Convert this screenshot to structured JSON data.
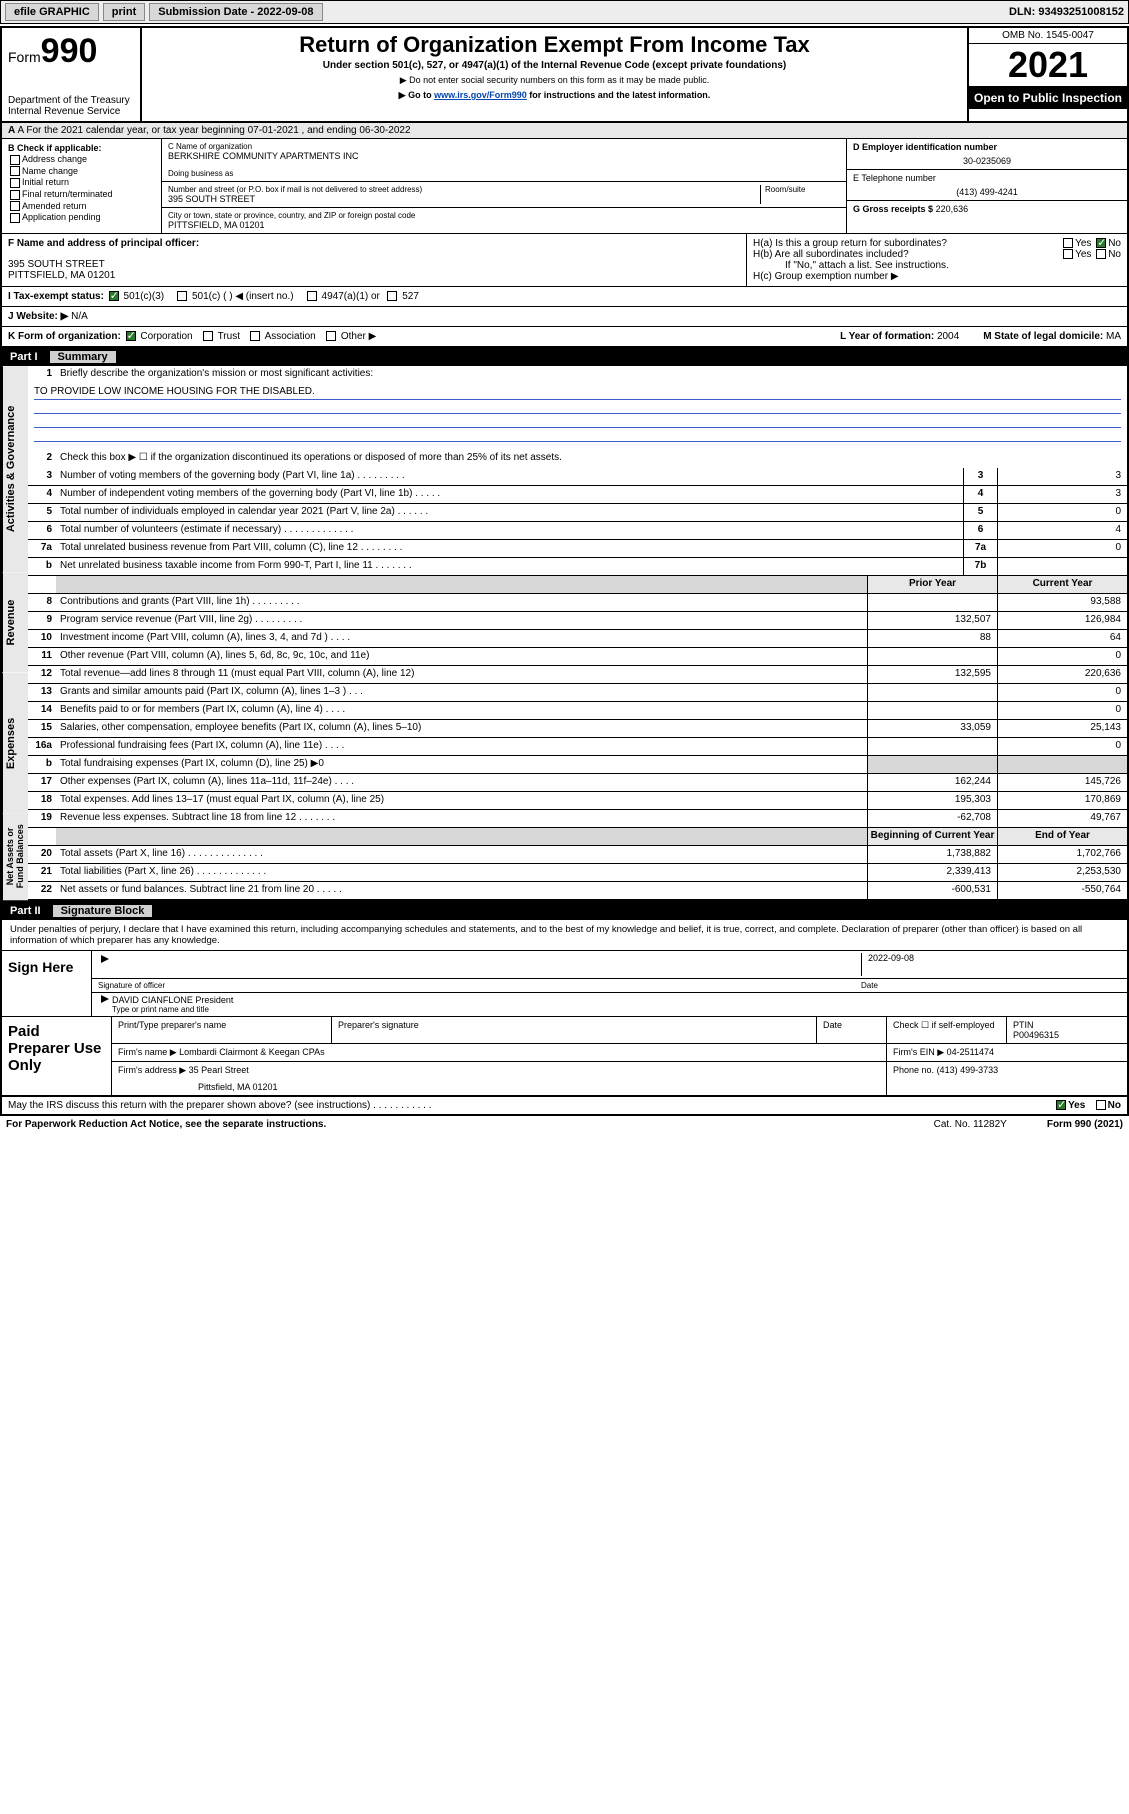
{
  "topbar": {
    "efile": "efile GRAPHIC",
    "print": "print",
    "subdate_label": "Submission Date - 2022-09-08",
    "dln": "DLN: 93493251008152"
  },
  "header": {
    "form_prefix": "Form",
    "form_number": "990",
    "dept": "Department of the Treasury",
    "irs": "Internal Revenue Service",
    "title": "Return of Organization Exempt From Income Tax",
    "sub1": "Under section 501(c), 527, or 4947(a)(1) of the Internal Revenue Code (except private foundations)",
    "sub2": "▶ Do not enter social security numbers on this form as it may be made public.",
    "sub3_pre": "▶ Go to ",
    "sub3_link": "www.irs.gov/Form990",
    "sub3_post": " for instructions and the latest information.",
    "omb": "OMB No. 1545-0047",
    "year": "2021",
    "open": "Open to Public Inspection"
  },
  "row_a": "A For the 2021 calendar year, or tax year beginning 07-01-2021   , and ending 06-30-2022",
  "section_b": {
    "label": "B Check if applicable:",
    "opts": [
      "Address change",
      "Name change",
      "Initial return",
      "Final return/terminated",
      "Amended return",
      "Application pending"
    ]
  },
  "section_c": {
    "name_label": "C Name of organization",
    "name": "BERKSHIRE COMMUNITY APARTMENTS INC",
    "dba_label": "Doing business as",
    "addr_label": "Number and street (or P.O. box if mail is not delivered to street address)",
    "room_label": "Room/suite",
    "addr": "395 SOUTH STREET",
    "city_label": "City or town, state or province, country, and ZIP or foreign postal code",
    "city": "PITTSFIELD, MA  01201"
  },
  "section_d": {
    "ein_label": "D Employer identification number",
    "ein": "30-0235069",
    "tel_label": "E Telephone number",
    "tel": "(413) 499-4241",
    "gross_label": "G Gross receipts $",
    "gross": "220,636"
  },
  "section_f": {
    "label": "F  Name and address of principal officer:",
    "addr1": "395 SOUTH STREET",
    "addr2": "PITTSFIELD, MA  01201"
  },
  "section_h": {
    "ha": "H(a)  Is this a group return for subordinates?",
    "hb": "H(b)  Are all subordinates included?",
    "hb_note": "If \"No,\" attach a list. See instructions.",
    "hc": "H(c)  Group exemption number ▶",
    "yes": "Yes",
    "no": "No"
  },
  "row_i": {
    "label": "I   Tax-exempt status:",
    "opt1": "501(c)(3)",
    "opt2": "501(c) (  ) ◀ (insert no.)",
    "opt3": "4947(a)(1) or",
    "opt4": "527"
  },
  "row_j": {
    "label": "J   Website: ▶",
    "val": "N/A"
  },
  "row_k": {
    "label": "K Form of organization:",
    "opts": [
      "Corporation",
      "Trust",
      "Association",
      "Other ▶"
    ],
    "year_label": "L Year of formation:",
    "year": "2004",
    "state_label": "M State of legal domicile:",
    "state": "MA"
  },
  "part1": {
    "header": "Part I",
    "title": "Summary",
    "l1": "Briefly describe the organization's mission or most significant activities:",
    "mission": "TO PROVIDE LOW INCOME HOUSING FOR THE DISABLED.",
    "l2": "Check this box ▶ ☐  if the organization discontinued its operations or disposed of more than 25% of its net assets.",
    "rows_top": [
      {
        "n": "3",
        "d": "Number of voting members of the governing body (Part VI, line 1a)  .    .    .    .    .    .    .    .    .",
        "box": "3",
        "v": "3"
      },
      {
        "n": "4",
        "d": "Number of independent voting members of the governing body (Part VI, line 1b)  .    .    .    .    .",
        "box": "4",
        "v": "3"
      },
      {
        "n": "5",
        "d": "Total number of individuals employed in calendar year 2021 (Part V, line 2a)  .    .    .    .    .    .",
        "box": "5",
        "v": "0"
      },
      {
        "n": "6",
        "d": "Total number of volunteers (estimate if necessary)  .    .    .    .    .    .    .    .    .    .    .    .    .",
        "box": "6",
        "v": "4"
      },
      {
        "n": "7a",
        "d": "Total unrelated business revenue from Part VIII, column (C), line 12  .    .    .    .    .    .    .    .",
        "box": "7a",
        "v": "0"
      },
      {
        "n": "b",
        "d": "Net unrelated business taxable income from Form 990-T, Part I, line 11  .    .    .    .    .    .    .",
        "box": "7b",
        "v": ""
      }
    ],
    "col_prior": "Prior Year",
    "col_current": "Current Year",
    "revenue": [
      {
        "n": "8",
        "d": "Contributions and grants (Part VIII, line 1h)  .    .    .    .    .    .    .    .    .",
        "p": "",
        "c": "93,588"
      },
      {
        "n": "9",
        "d": "Program service revenue (Part VIII, line 2g)  .    .    .    .    .    .    .    .    .",
        "p": "132,507",
        "c": "126,984"
      },
      {
        "n": "10",
        "d": "Investment income (Part VIII, column (A), lines 3, 4, and 7d )  .    .    .    .",
        "p": "88",
        "c": "64"
      },
      {
        "n": "11",
        "d": "Other revenue (Part VIII, column (A), lines 5, 6d, 8c, 9c, 10c, and 11e)",
        "p": "",
        "c": "0"
      },
      {
        "n": "12",
        "d": "Total revenue—add lines 8 through 11 (must equal Part VIII, column (A), line 12)",
        "p": "132,595",
        "c": "220,636"
      }
    ],
    "expenses": [
      {
        "n": "13",
        "d": "Grants and similar amounts paid (Part IX, column (A), lines 1–3 )  .    .    .",
        "p": "",
        "c": "0"
      },
      {
        "n": "14",
        "d": "Benefits paid to or for members (Part IX, column (A), line 4)  .    .    .    .",
        "p": "",
        "c": "0"
      },
      {
        "n": "15",
        "d": "Salaries, other compensation, employee benefits (Part IX, column (A), lines 5–10)",
        "p": "33,059",
        "c": "25,143"
      },
      {
        "n": "16a",
        "d": "Professional fundraising fees (Part IX, column (A), line 11e)  .    .    .    .",
        "p": "",
        "c": "0"
      },
      {
        "n": "b",
        "d": "Total fundraising expenses (Part IX, column (D), line 25) ▶0",
        "p": "grey",
        "c": "grey"
      },
      {
        "n": "17",
        "d": "Other expenses (Part IX, column (A), lines 11a–11d, 11f–24e)  .    .    .    .",
        "p": "162,244",
        "c": "145,726"
      },
      {
        "n": "18",
        "d": "Total expenses. Add lines 13–17 (must equal Part IX, column (A), line 25)",
        "p": "195,303",
        "c": "170,869"
      },
      {
        "n": "19",
        "d": "Revenue less expenses. Subtract line 18 from line 12  .    .    .    .    .    .    .",
        "p": "-62,708",
        "c": "49,767"
      }
    ],
    "col_begin": "Beginning of Current Year",
    "col_end": "End of Year",
    "netassets": [
      {
        "n": "20",
        "d": "Total assets (Part X, line 16)  .    .    .    .    .    .    .    .    .    .    .    .    .    .",
        "p": "1,738,882",
        "c": "1,702,766"
      },
      {
        "n": "21",
        "d": "Total liabilities (Part X, line 26)  .    .    .    .    .    .    .    .    .    .    .    .    .",
        "p": "2,339,413",
        "c": "2,253,530"
      },
      {
        "n": "22",
        "d": "Net assets or fund balances. Subtract line 21 from line 20  .    .    .    .    .",
        "p": "-600,531",
        "c": "-550,764"
      }
    ],
    "tab_ag": "Activities & Governance",
    "tab_rev": "Revenue",
    "tab_exp": "Expenses",
    "tab_na": "Net Assets or Fund Balances"
  },
  "part2": {
    "header": "Part II",
    "title": "Signature Block",
    "decl": "Under penalties of perjury, I declare that I have examined this return, including accompanying schedules and statements, and to the best of my knowledge and belief, it is true, correct, and complete. Declaration of preparer (other than officer) is based on all information of which preparer has any knowledge.",
    "sign_here": "Sign Here",
    "sig_officer": "Signature of officer",
    "date": "Date",
    "sig_date": "2022-09-08",
    "name_title": "DAVID CIANFLONE  President",
    "name_title_label": "Type or print name and title",
    "paid": "Paid Preparer Use Only",
    "prep_name_label": "Print/Type preparer's name",
    "prep_sig_label": "Preparer's signature",
    "date_label": "Date",
    "check_label": "Check ☐ if self-employed",
    "ptin_label": "PTIN",
    "ptin": "P00496315",
    "firm_name_label": "Firm's name    ▶",
    "firm_name": "Lombardi Clairmont & Keegan CPAs",
    "firm_ein_label": "Firm's EIN ▶",
    "firm_ein": "04-2511474",
    "firm_addr_label": "Firm's address ▶",
    "firm_addr1": "35 Pearl Street",
    "firm_addr2": "Pittsfield, MA  01201",
    "phone_label": "Phone no.",
    "phone": "(413) 499-3733",
    "discuss": "May the IRS discuss this return with the preparer shown above? (see instructions)  .    .    .    .    .    .    .    .    .    .    .",
    "yes": "Yes",
    "no": "No"
  },
  "footer": {
    "pra": "For Paperwork Reduction Act Notice, see the separate instructions.",
    "cat": "Cat. No. 11282Y",
    "form": "Form 990 (2021)"
  }
}
